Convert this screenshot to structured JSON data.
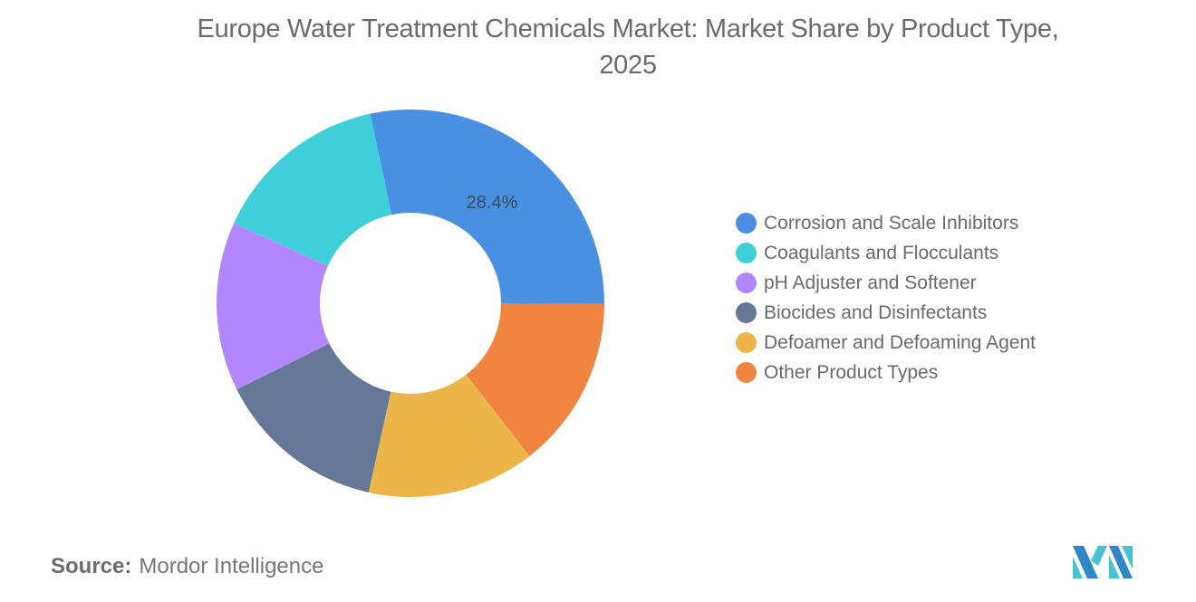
{
  "title": {
    "line1": "Europe Water Treatment Chemicals Market: Market Share by Product Type,",
    "line2": "2025"
  },
  "chart_data": {
    "type": "pie",
    "subtype": "donut",
    "title": "Europe Water Treatment Chemicals Market: Market Share by Product Type, 2025",
    "categories": [
      "Corrosion and Scale Inhibitors",
      "Other Product Types",
      "Defoamer and Defoaming Agent",
      "Biocides and Disinfectants",
      "pH Adjuster and Softener",
      "Coagulants and Flocculants"
    ],
    "values": [
      28.4,
      14.4,
      14.0,
      14.2,
      14.1,
      14.9
    ],
    "colors": [
      "#4a90e2",
      "#f08441",
      "#ebb54a",
      "#657898",
      "#b286fc",
      "#40cfd8"
    ],
    "labels_shown": {
      "Corrosion and Scale Inhibitors": "28.4%"
    },
    "start_angle_deg": -12,
    "direction": "clockwise",
    "legend_position": "right",
    "unit": "%"
  },
  "legend": {
    "items": [
      {
        "label": "Corrosion and Scale Inhibitors",
        "color": "#4a90e2"
      },
      {
        "label": "Coagulants and Flocculants",
        "color": "#40cfd8"
      },
      {
        "label": "pH Adjuster and Softener",
        "color": "#b286fc"
      },
      {
        "label": "Biocides and Disinfectants",
        "color": "#657898"
      },
      {
        "label": "Defoamer and Defoaming Agent",
        "color": "#ebb54a"
      },
      {
        "label": "Other Product Types",
        "color": "#f08441"
      }
    ]
  },
  "data_label": "28.4%",
  "source": {
    "label": "Source:",
    "value": "Mordor Intelligence"
  },
  "logo": {
    "name": "mordor-intelligence-logo"
  }
}
